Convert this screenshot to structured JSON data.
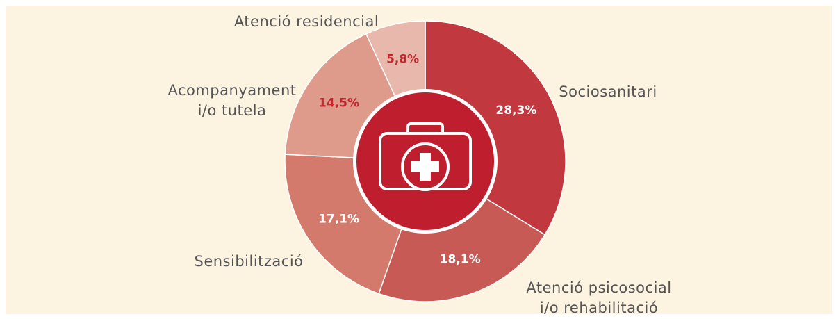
{
  "chart_data": {
    "type": "donut",
    "categories": [
      [
        "Sociosanitari"
      ],
      [
        "Atenció psicosocial",
        "i/o rehabilitació"
      ],
      [
        "Sensibilització"
      ],
      [
        "Acompanyament",
        "i/o tutela"
      ],
      [
        "Atenció residencial"
      ]
    ],
    "values": [
      28.3,
      18.1,
      17.1,
      14.5,
      5.8
    ],
    "value_labels": [
      "28,3%",
      "18,1%",
      "17,1%",
      "14,5%",
      "5,8%"
    ],
    "colors": [
      "#c1393f",
      "#c85a55",
      "#d37a6c",
      "#de9a8b",
      "#e8b8ad"
    ],
    "label_colors": [
      "#ffffff",
      "#ffffff",
      "#ffffff",
      "#c1272d",
      "#c1272d"
    ]
  }
}
